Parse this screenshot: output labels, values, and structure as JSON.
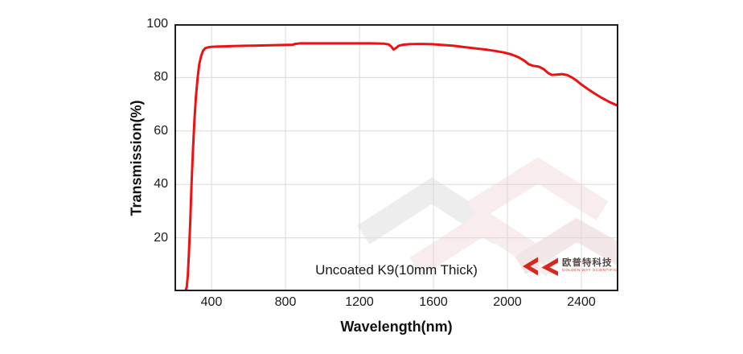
{
  "chart_data": {
    "type": "line",
    "title": "",
    "xlabel": "Wavelength(nm)",
    "ylabel": "Transmission(%)",
    "xlim": [
      200,
      2600
    ],
    "ylim": [
      0,
      100
    ],
    "x_ticks": [
      400,
      800,
      1200,
      1600,
      2000,
      2400
    ],
    "y_ticks": [
      20,
      40,
      60,
      80,
      100
    ],
    "grid": true,
    "legend": "none",
    "annotation": "Uncoated K9(10mm Thick)",
    "series": [
      {
        "name": "Uncoated K9 10mm transmission",
        "color": "#ee1111",
        "points": [
          [
            200,
            0
          ],
          [
            252,
            0
          ],
          [
            260,
            0.3
          ],
          [
            266,
            1.5
          ],
          [
            272,
            6
          ],
          [
            278,
            14
          ],
          [
            285,
            26
          ],
          [
            292,
            40
          ],
          [
            300,
            53
          ],
          [
            308,
            64
          ],
          [
            316,
            73
          ],
          [
            325,
            80
          ],
          [
            334,
            85
          ],
          [
            344,
            88
          ],
          [
            354,
            90
          ],
          [
            366,
            91
          ],
          [
            380,
            91.3
          ],
          [
            400,
            91.5
          ],
          [
            430,
            91.6
          ],
          [
            470,
            91.7
          ],
          [
            520,
            91.8
          ],
          [
            580,
            91.9
          ],
          [
            650,
            92.0
          ],
          [
            720,
            92.1
          ],
          [
            790,
            92.2
          ],
          [
            840,
            92.3
          ],
          [
            852,
            92.6
          ],
          [
            880,
            92.8
          ],
          [
            960,
            92.8
          ],
          [
            1060,
            92.8
          ],
          [
            1160,
            92.8
          ],
          [
            1260,
            92.8
          ],
          [
            1330,
            92.7
          ],
          [
            1358,
            92.4
          ],
          [
            1372,
            91.6
          ],
          [
            1384,
            90.5
          ],
          [
            1396,
            91.0
          ],
          [
            1412,
            91.9
          ],
          [
            1435,
            92.3
          ],
          [
            1470,
            92.5
          ],
          [
            1530,
            92.6
          ],
          [
            1590,
            92.5
          ],
          [
            1650,
            92.2
          ],
          [
            1710,
            91.9
          ],
          [
            1770,
            91.4
          ],
          [
            1830,
            90.9
          ],
          [
            1880,
            90.5
          ],
          [
            1930,
            90.0
          ],
          [
            1980,
            89.4
          ],
          [
            2020,
            88.7
          ],
          [
            2060,
            87.6
          ],
          [
            2090,
            86.4
          ],
          [
            2115,
            85.0
          ],
          [
            2140,
            84.4
          ],
          [
            2170,
            84.1
          ],
          [
            2195,
            83.2
          ],
          [
            2220,
            81.7
          ],
          [
            2240,
            81.0
          ],
          [
            2265,
            81.1
          ],
          [
            2295,
            81.3
          ],
          [
            2325,
            80.9
          ],
          [
            2350,
            80.0
          ],
          [
            2375,
            78.8
          ],
          [
            2400,
            77.4
          ],
          [
            2435,
            75.7
          ],
          [
            2470,
            74.1
          ],
          [
            2510,
            72.4
          ],
          [
            2550,
            70.9
          ],
          [
            2580,
            70.0
          ],
          [
            2600,
            69.4
          ]
        ]
      }
    ]
  },
  "branding": {
    "logo_cn": "欧普特科技",
    "logo_en": "GOLDEN WAY SCIENTIFIC"
  },
  "colors": {
    "curve": "#ee1111",
    "grid": "#d9d9d9",
    "axis_frame": "#1f1f1f",
    "logo_red": "#d6281e",
    "watermark_pink": "#f8ecec",
    "watermark_gray": "#ededed"
  }
}
